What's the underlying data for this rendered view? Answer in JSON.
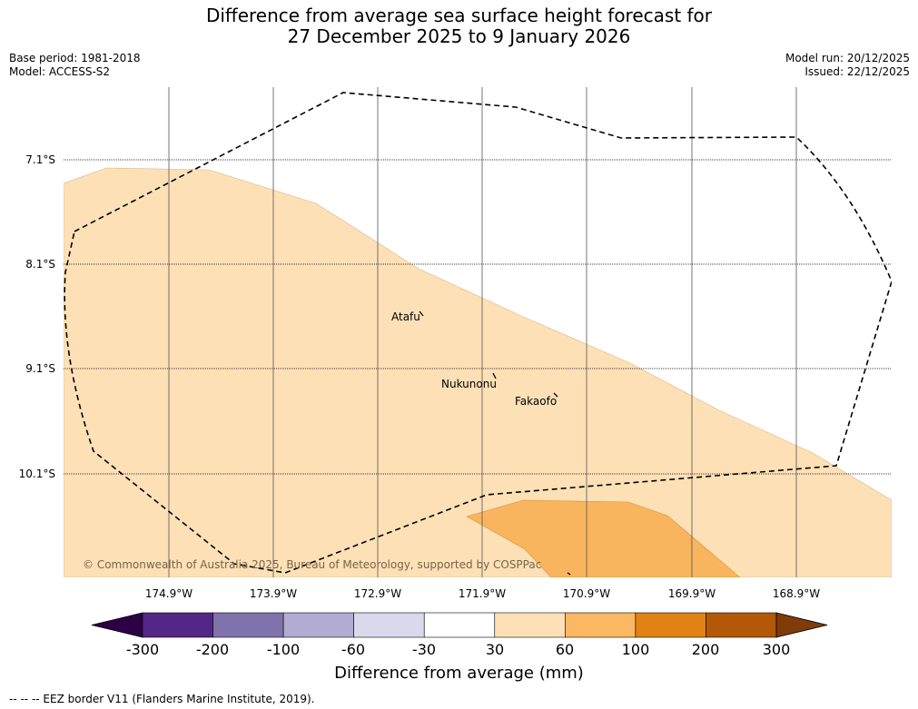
{
  "title": {
    "line1": "Difference from average sea surface height forecast for",
    "line2": "27 December 2025 to 9 January 2026"
  },
  "meta": {
    "base_period": "Base period: 1981-2018",
    "model": "Model: ACCESS-S2",
    "model_run": "Model run: 20/12/2025",
    "issued": "Issued: 22/12/2025"
  },
  "map": {
    "latitude_labels": [
      "7.1°S",
      "8.1°S",
      "9.1°S",
      "10.1°S"
    ],
    "longitude_labels": [
      "174.9°W",
      "173.9°W",
      "172.9°W",
      "171.9°W",
      "170.9°W",
      "169.9°W",
      "168.9°W"
    ],
    "places": [
      {
        "name": "Atafu"
      },
      {
        "name": "Nukunonu"
      },
      {
        "name": "Fakaofo"
      }
    ],
    "copyright": "© Commonwealth of Australia 2025, Bureau of Meteorology, supported by COSPPac",
    "colors": {
      "band_30_60": "#fde0b6",
      "band_60_100": "#f8b55e",
      "eez_line": "#000000"
    }
  },
  "colorbar": {
    "ticks": [
      "-300",
      "-200",
      "-100",
      "-60",
      "-30",
      "30",
      "60",
      "100",
      "200",
      "300"
    ],
    "colors": [
      "#2d0045",
      "#542788",
      "#8073ac",
      "#b2abd2",
      "#d8daeb",
      "#ffffff",
      "#fee0b6",
      "#fdb863",
      "#e08214",
      "#b35806",
      "#7f3b08"
    ],
    "title": "Difference from average (mm)"
  },
  "footnote": "--  --  -- EEZ border V11 (Flanders Marine Institute, 2019)."
}
